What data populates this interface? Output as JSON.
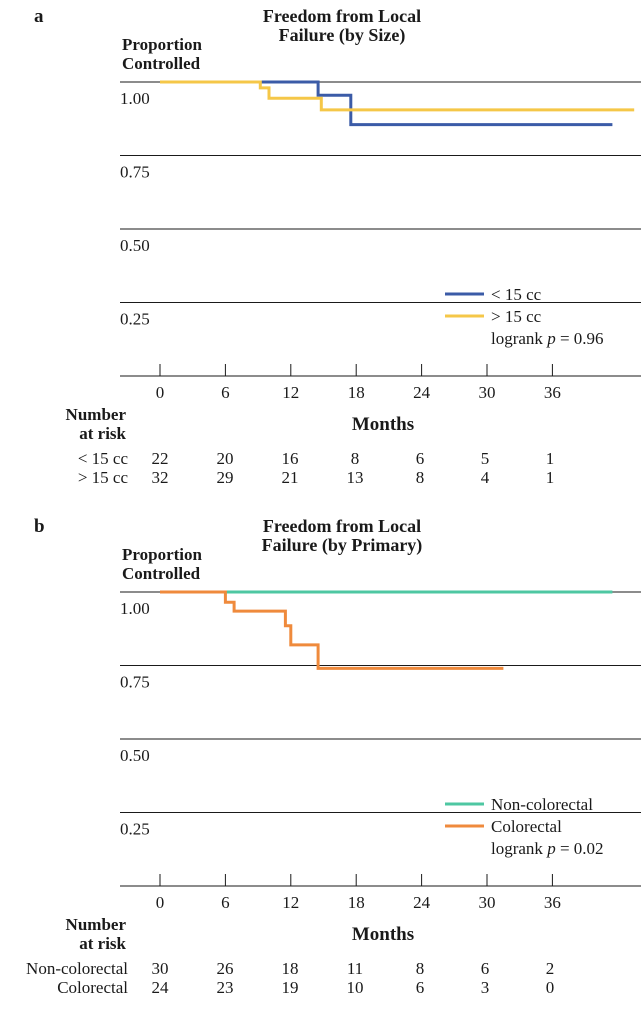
{
  "chart_data": [
    {
      "type": "line",
      "panel_letter": "a",
      "title": [
        "Freedom from Local",
        "Failure (by Size)"
      ],
      "ylabel": [
        "Proportion",
        "Controlled"
      ],
      "xlabel": "Months",
      "yticks": [
        "1.00",
        "0.75",
        "0.50",
        "0.25"
      ],
      "xticks": [
        "0",
        "6",
        "12",
        "18",
        "24",
        "30",
        "36"
      ],
      "xlim": [
        0,
        42
      ],
      "ylim": [
        0,
        1
      ],
      "grid": true,
      "legend_position": "lower-right",
      "colors": {
        "series1": "#3b5ba7",
        "series2": "#f5c748"
      },
      "series": [
        {
          "name": "< 15 cc",
          "points": [
            [
              0,
              1.0
            ],
            [
              14.5,
              1.0
            ],
            [
              14.5,
              0.955
            ],
            [
              17.5,
              0.955
            ],
            [
              17.5,
              0.855
            ],
            [
              41.5,
              0.855
            ]
          ]
        },
        {
          "name": "> 15 cc",
          "points": [
            [
              0,
              1.0
            ],
            [
              9.2,
              1.0
            ],
            [
              9.2,
              0.98
            ],
            [
              10,
              0.98
            ],
            [
              10,
              0.945
            ],
            [
              14.8,
              0.945
            ],
            [
              14.8,
              0.905
            ],
            [
              43.5,
              0.905
            ]
          ]
        }
      ],
      "annotation": {
        "prefix": "logrank ",
        "italic": "p",
        "suffix": " = 0.96"
      },
      "risk_table": {
        "header": [
          "Number",
          "at risk"
        ],
        "rows": [
          {
            "label": "< 15 cc",
            "values": [
              "22",
              "20",
              "16",
              "8",
              "6",
              "5",
              "1"
            ]
          },
          {
            "label": "> 15 cc",
            "values": [
              "32",
              "29",
              "21",
              "13",
              "8",
              "4",
              "1"
            ]
          }
        ]
      }
    },
    {
      "type": "line",
      "panel_letter": "b",
      "title": [
        "Freedom from Local",
        "Failure (by Primary)"
      ],
      "ylabel": [
        "Proportion",
        "Controlled"
      ],
      "xlabel": "Months",
      "yticks": [
        "1.00",
        "0.75",
        "0.50",
        "0.25"
      ],
      "xticks": [
        "0",
        "6",
        "12",
        "18",
        "24",
        "30",
        "36"
      ],
      "xlim": [
        0,
        42
      ],
      "ylim": [
        0,
        1
      ],
      "grid": true,
      "legend_position": "lower-right",
      "colors": {
        "series1": "#4ec7a2",
        "series2": "#ef8a3c"
      },
      "series": [
        {
          "name": "Non-colorectal",
          "points": [
            [
              0,
              1.0
            ],
            [
              41.5,
              1.0
            ]
          ]
        },
        {
          "name": "Colorectal",
          "points": [
            [
              0,
              1.0
            ],
            [
              6,
              1.0
            ],
            [
              6,
              0.965
            ],
            [
              6.8,
              0.965
            ],
            [
              6.8,
              0.935
            ],
            [
              11.5,
              0.935
            ],
            [
              11.5,
              0.885
            ],
            [
              12,
              0.885
            ],
            [
              12,
              0.82
            ],
            [
              14.5,
              0.82
            ],
            [
              14.5,
              0.74
            ],
            [
              31.5,
              0.74
            ]
          ]
        }
      ],
      "annotation": {
        "prefix": "logrank ",
        "italic": "p",
        "suffix": " = 0.02"
      },
      "risk_table": {
        "header": [
          "Number",
          "at risk"
        ],
        "rows": [
          {
            "label": "Non-colorectal",
            "values": [
              "30",
              "26",
              "18",
              "11",
              "8",
              "6",
              "2"
            ]
          },
          {
            "label": "Colorectal",
            "values": [
              "24",
              "23",
              "19",
              "10",
              "6",
              "3",
              "0"
            ]
          }
        ]
      }
    }
  ]
}
